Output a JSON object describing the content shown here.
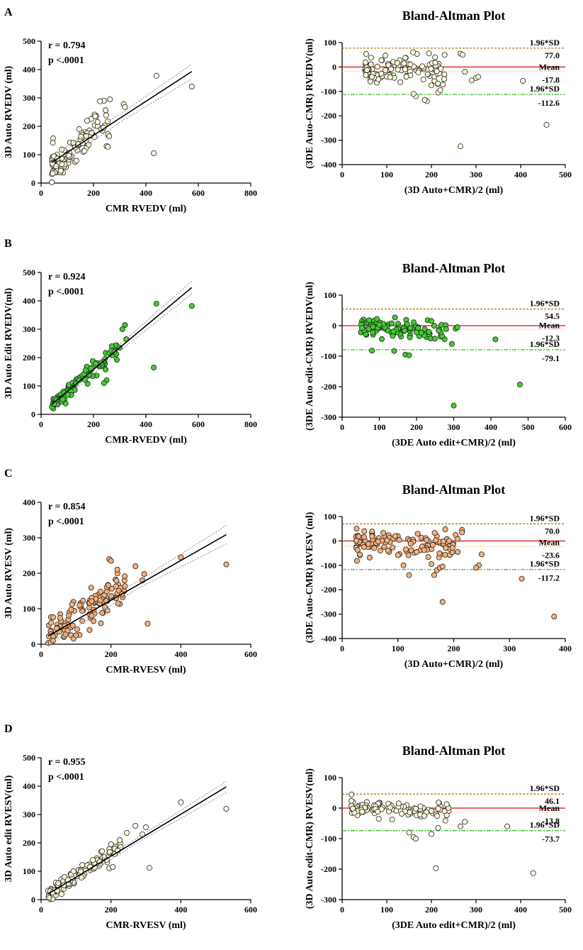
{
  "colors": {
    "beige": "#FFF9DC",
    "green": "#3FCF2C",
    "orange": "#F4B07A",
    "mean_line": "#E8353F",
    "upper_loa": "#B07A1E",
    "lower_loa": "#3BBF2A",
    "ci_band": "#888888"
  },
  "chart_data": [
    {
      "panel": "A",
      "type": "scatter",
      "title": "",
      "xlabel": "CMR RVEDV (ml)",
      "ylabel": "3D Auto RVEDV (ml)",
      "xlim": [
        0,
        800
      ],
      "ylim": [
        0,
        500
      ],
      "xticks": [
        "0",
        "200",
        "400",
        "600",
        "800"
      ],
      "yticks": [
        "0",
        "100",
        "200",
        "300",
        "400",
        "500"
      ],
      "stats": [
        "r = 0.794",
        "p <.0001"
      ],
      "fill": "beige",
      "regression": {
        "slope": 0.6,
        "intercept": 48,
        "x_range": [
          40,
          575
        ],
        "ci": [
          14,
          26
        ]
      },
      "outliers": [
        [
          430,
          105
        ],
        [
          440,
          378
        ],
        [
          575,
          340
        ],
        [
          315,
          278
        ],
        [
          320,
          268
        ],
        [
          263,
          295
        ],
        [
          240,
          290
        ],
        [
          225,
          288
        ],
        [
          255,
          172
        ],
        [
          260,
          165
        ],
        [
          250,
          130
        ],
        [
          255,
          128
        ]
      ],
      "n_cloud": 110,
      "cloud": {
        "xmin": 40,
        "xmax": 260,
        "slope": 0.78,
        "intercept": 22,
        "sd": 28,
        "seed": 11
      }
    },
    {
      "panel": "A",
      "type": "scatter",
      "title": "Bland-Altman Plot",
      "xlabel": "(3D Auto+CMR)/2 (ml)",
      "ylabel": "(3DE Auto-CMR) RVEDV(ml)",
      "xlim": [
        0,
        500
      ],
      "ylim": [
        -400,
        100
      ],
      "xticks": [
        "0",
        "100",
        "200",
        "300",
        "400",
        "500"
      ],
      "yticks": [
        "-400",
        "-300",
        "-200",
        "-100",
        "0",
        "100"
      ],
      "fill": "beige",
      "mean": -17.8,
      "upper": 77.0,
      "lower": -112.6,
      "labels": {
        "sd": "1.96*SD",
        "upper": "77.0",
        "mean_label": "Mean",
        "mean": "-17.8",
        "lower": "-112.6"
      },
      "outliers": [
        [
          265,
          -325
        ],
        [
          458,
          -237
        ],
        [
          405,
          -57
        ],
        [
          300,
          -45
        ],
        [
          305,
          -40
        ],
        [
          290,
          -55
        ],
        [
          265,
          55
        ],
        [
          270,
          50
        ],
        [
          275,
          -20
        ],
        [
          190,
          -140
        ],
        [
          185,
          -135
        ],
        [
          165,
          -120
        ],
        [
          160,
          -110
        ],
        [
          215,
          -105
        ],
        [
          220,
          -95
        ],
        [
          200,
          -75
        ]
      ],
      "n_cloud": 110,
      "cloud": {
        "xmin": 50,
        "xmax": 230,
        "slope": -0.05,
        "intercept": 0,
        "sd": 27,
        "seed": 23
      }
    },
    {
      "panel": "B",
      "type": "scatter",
      "title": "",
      "xlabel": "CMR-RVEDV (ml)",
      "ylabel": "3D Auto Edit RVEDV(ml)",
      "xlim": [
        0,
        800
      ],
      "ylim": [
        0,
        500
      ],
      "xticks": [
        "0",
        "200",
        "400",
        "600",
        "800"
      ],
      "yticks": [
        "0",
        "100",
        "200",
        "300",
        "400",
        "500"
      ],
      "stats": [
        "r = 0.924",
        "p <.0001"
      ],
      "fill": "green",
      "regression": {
        "slope": 0.77,
        "intercept": 4,
        "x_range": [
          40,
          575
        ],
        "ci": [
          12,
          22
        ]
      },
      "outliers": [
        [
          430,
          165
        ],
        [
          440,
          390
        ],
        [
          575,
          382
        ],
        [
          320,
          315
        ],
        [
          325,
          265
        ],
        [
          310,
          300
        ],
        [
          300,
          235
        ],
        [
          270,
          240
        ],
        [
          280,
          220
        ],
        [
          250,
          120
        ],
        [
          240,
          110
        ]
      ],
      "n_cloud": 110,
      "cloud": {
        "xmin": 40,
        "xmax": 290,
        "slope": 0.78,
        "intercept": 0,
        "sd": 14,
        "seed": 37
      }
    },
    {
      "panel": "B",
      "type": "scatter",
      "title": "Bland-Altman Plot",
      "xlabel": "(3DE Auto edit+CMR)/2 (ml)",
      "ylabel": "(3DE Auto edit-CMR) RVEDV(ml)",
      "xlim": [
        0,
        600
      ],
      "ylim": [
        -300,
        100
      ],
      "xticks": [
        "0",
        "100",
        "200",
        "300",
        "400",
        "500",
        "600"
      ],
      "yticks": [
        "-300",
        "-200",
        "-100",
        "0",
        "100"
      ],
      "fill": "green",
      "mean": -12.3,
      "upper": 54.5,
      "lower": -79.1,
      "labels": {
        "sd": "1.96*SD",
        "upper": "54.5",
        "mean_label": "Mean",
        "mean": "-12.3",
        "lower": "-79.1"
      },
      "outliers": [
        [
          300,
          -262
        ],
        [
          478,
          -193
        ],
        [
          412,
          -45
        ],
        [
          295,
          -60
        ],
        [
          305,
          -10
        ],
        [
          310,
          -5
        ],
        [
          170,
          -95
        ],
        [
          180,
          -97
        ],
        [
          140,
          -83
        ],
        [
          80,
          -82
        ],
        [
          230,
          18
        ],
        [
          240,
          15
        ]
      ],
      "n_cloud": 110,
      "cloud": {
        "xmin": 50,
        "xmax": 280,
        "slope": -0.08,
        "intercept": 0,
        "sd": 15,
        "seed": 41
      }
    },
    {
      "panel": "C",
      "type": "scatter",
      "title": "",
      "xlabel": "CMR-RVESV (ml)",
      "ylabel": "3D Auto RVESV (ml)",
      "xlim": [
        0,
        600
      ],
      "ylim": [
        0,
        400
      ],
      "xticks": [
        "0",
        "200",
        "400",
        "600"
      ],
      "yticks": [
        "0",
        "100",
        "200",
        "300",
        "400"
      ],
      "stats": [
        "r = 0.854",
        "p <.0001"
      ],
      "fill": "orange",
      "regression": {
        "slope": 0.56,
        "intercept": 12,
        "x_range": [
          20,
          530
        ],
        "ci": [
          10,
          26
        ]
      },
      "outliers": [
        [
          530,
          225
        ],
        [
          400,
          245
        ],
        [
          305,
          58
        ],
        [
          295,
          198
        ],
        [
          290,
          180
        ],
        [
          270,
          220
        ],
        [
          195,
          240
        ],
        [
          200,
          235
        ],
        [
          215,
          130
        ],
        [
          220,
          115
        ],
        [
          190,
          95
        ],
        [
          150,
          65
        ],
        [
          145,
          80
        ]
      ],
      "n_cloud": 130,
      "cloud": {
        "xmin": 20,
        "xmax": 240,
        "slope": 0.72,
        "intercept": 4,
        "sd": 24,
        "seed": 53
      }
    },
    {
      "panel": "C",
      "type": "scatter",
      "title": "Bland-Altman Plot",
      "xlabel": "(3D Auto+CMR)/2 (ml)",
      "ylabel": "(3DE Auto-CMR) RVESV (ml)",
      "xlim": [
        0,
        400
      ],
      "ylim": [
        -400,
        100
      ],
      "xticks": [
        "0",
        "100",
        "200",
        "300",
        "400"
      ],
      "yticks": [
        "-400",
        "-300",
        "-200",
        "-100",
        "0",
        "100"
      ],
      "fill": "orange",
      "mean": -23.6,
      "upper": 70.0,
      "lower": -117.2,
      "labels": {
        "sd": "1.96*SD",
        "upper": "70.0",
        "mean_label": "Mean",
        "mean": "-23.6",
        "lower": "-117.2"
      },
      "outliers": [
        [
          380,
          -310
        ],
        [
          322,
          -155
        ],
        [
          180,
          -250
        ],
        [
          215,
          45
        ],
        [
          215,
          35
        ],
        [
          245,
          -100
        ],
        [
          250,
          -55
        ],
        [
          240,
          -110
        ],
        [
          165,
          -140
        ],
        [
          170,
          -120
        ],
        [
          175,
          -110
        ],
        [
          180,
          -105
        ],
        [
          160,
          -95
        ],
        [
          120,
          -140
        ],
        [
          110,
          -100
        ]
      ],
      "n_cloud": 120,
      "cloud": {
        "xmin": 25,
        "xmax": 210,
        "slope": -0.12,
        "intercept": 0,
        "sd": 27,
        "seed": 67
      }
    },
    {
      "panel": "D",
      "type": "scatter",
      "title": "",
      "xlabel": "CMR-RVESV (ml)",
      "ylabel": "3D Auto edit RVESV(ml)",
      "xlim": [
        0,
        600
      ],
      "ylim": [
        0,
        500
      ],
      "xticks": [
        "0",
        "200",
        "400",
        "600"
      ],
      "yticks": [
        "0",
        "100",
        "200",
        "300",
        "400",
        "500"
      ],
      "stats": [
        "r = 0.955",
        "p <.0001"
      ],
      "fill": "beige",
      "regression": {
        "slope": 0.74,
        "intercept": 5,
        "x_range": [
          20,
          530
        ],
        "ci": [
          8,
          20
        ]
      },
      "outliers": [
        [
          530,
          320
        ],
        [
          400,
          343
        ],
        [
          310,
          112
        ],
        [
          300,
          255
        ],
        [
          270,
          260
        ],
        [
          290,
          230
        ],
        [
          245,
          235
        ],
        [
          225,
          210
        ],
        [
          200,
          195
        ],
        [
          195,
          110
        ],
        [
          205,
          115
        ]
      ],
      "n_cloud": 110,
      "cloud": {
        "xmin": 20,
        "xmax": 230,
        "slope": 0.83,
        "intercept": 0,
        "sd": 12,
        "seed": 79
      }
    },
    {
      "panel": "D",
      "type": "scatter",
      "title": "Bland-Altman Plot",
      "xlabel": "(3DE Auto edit+CMR)/2 (ml)",
      "ylabel": "(3D Auto edit-CMR) RVESV(ml)",
      "xlim": [
        0,
        500
      ],
      "ylim": [
        -300,
        100
      ],
      "xticks": [
        "0",
        "100",
        "200",
        "300",
        "400",
        "500"
      ],
      "yticks": [
        "-300",
        "-200",
        "-100",
        "0",
        "100"
      ],
      "fill": "beige",
      "mean": -13.8,
      "upper": 46.1,
      "lower": -73.7,
      "labels": {
        "sd": "1.96*SD",
        "upper": "46.1",
        "mean_label": "Mean",
        "mean": "-13.8",
        "lower": "-73.7"
      },
      "outliers": [
        [
          428,
          -213
        ],
        [
          210,
          -197
        ],
        [
          370,
          -60
        ],
        [
          265,
          -60
        ],
        [
          275,
          -45
        ],
        [
          160,
          -95
        ],
        [
          165,
          -100
        ],
        [
          150,
          -80
        ],
        [
          200,
          -85
        ],
        [
          215,
          -65
        ]
      ],
      "n_cloud": 110,
      "cloud": {
        "xmin": 20,
        "xmax": 240,
        "slope": -0.06,
        "intercept": 0,
        "sd": 15,
        "seed": 97
      }
    }
  ]
}
